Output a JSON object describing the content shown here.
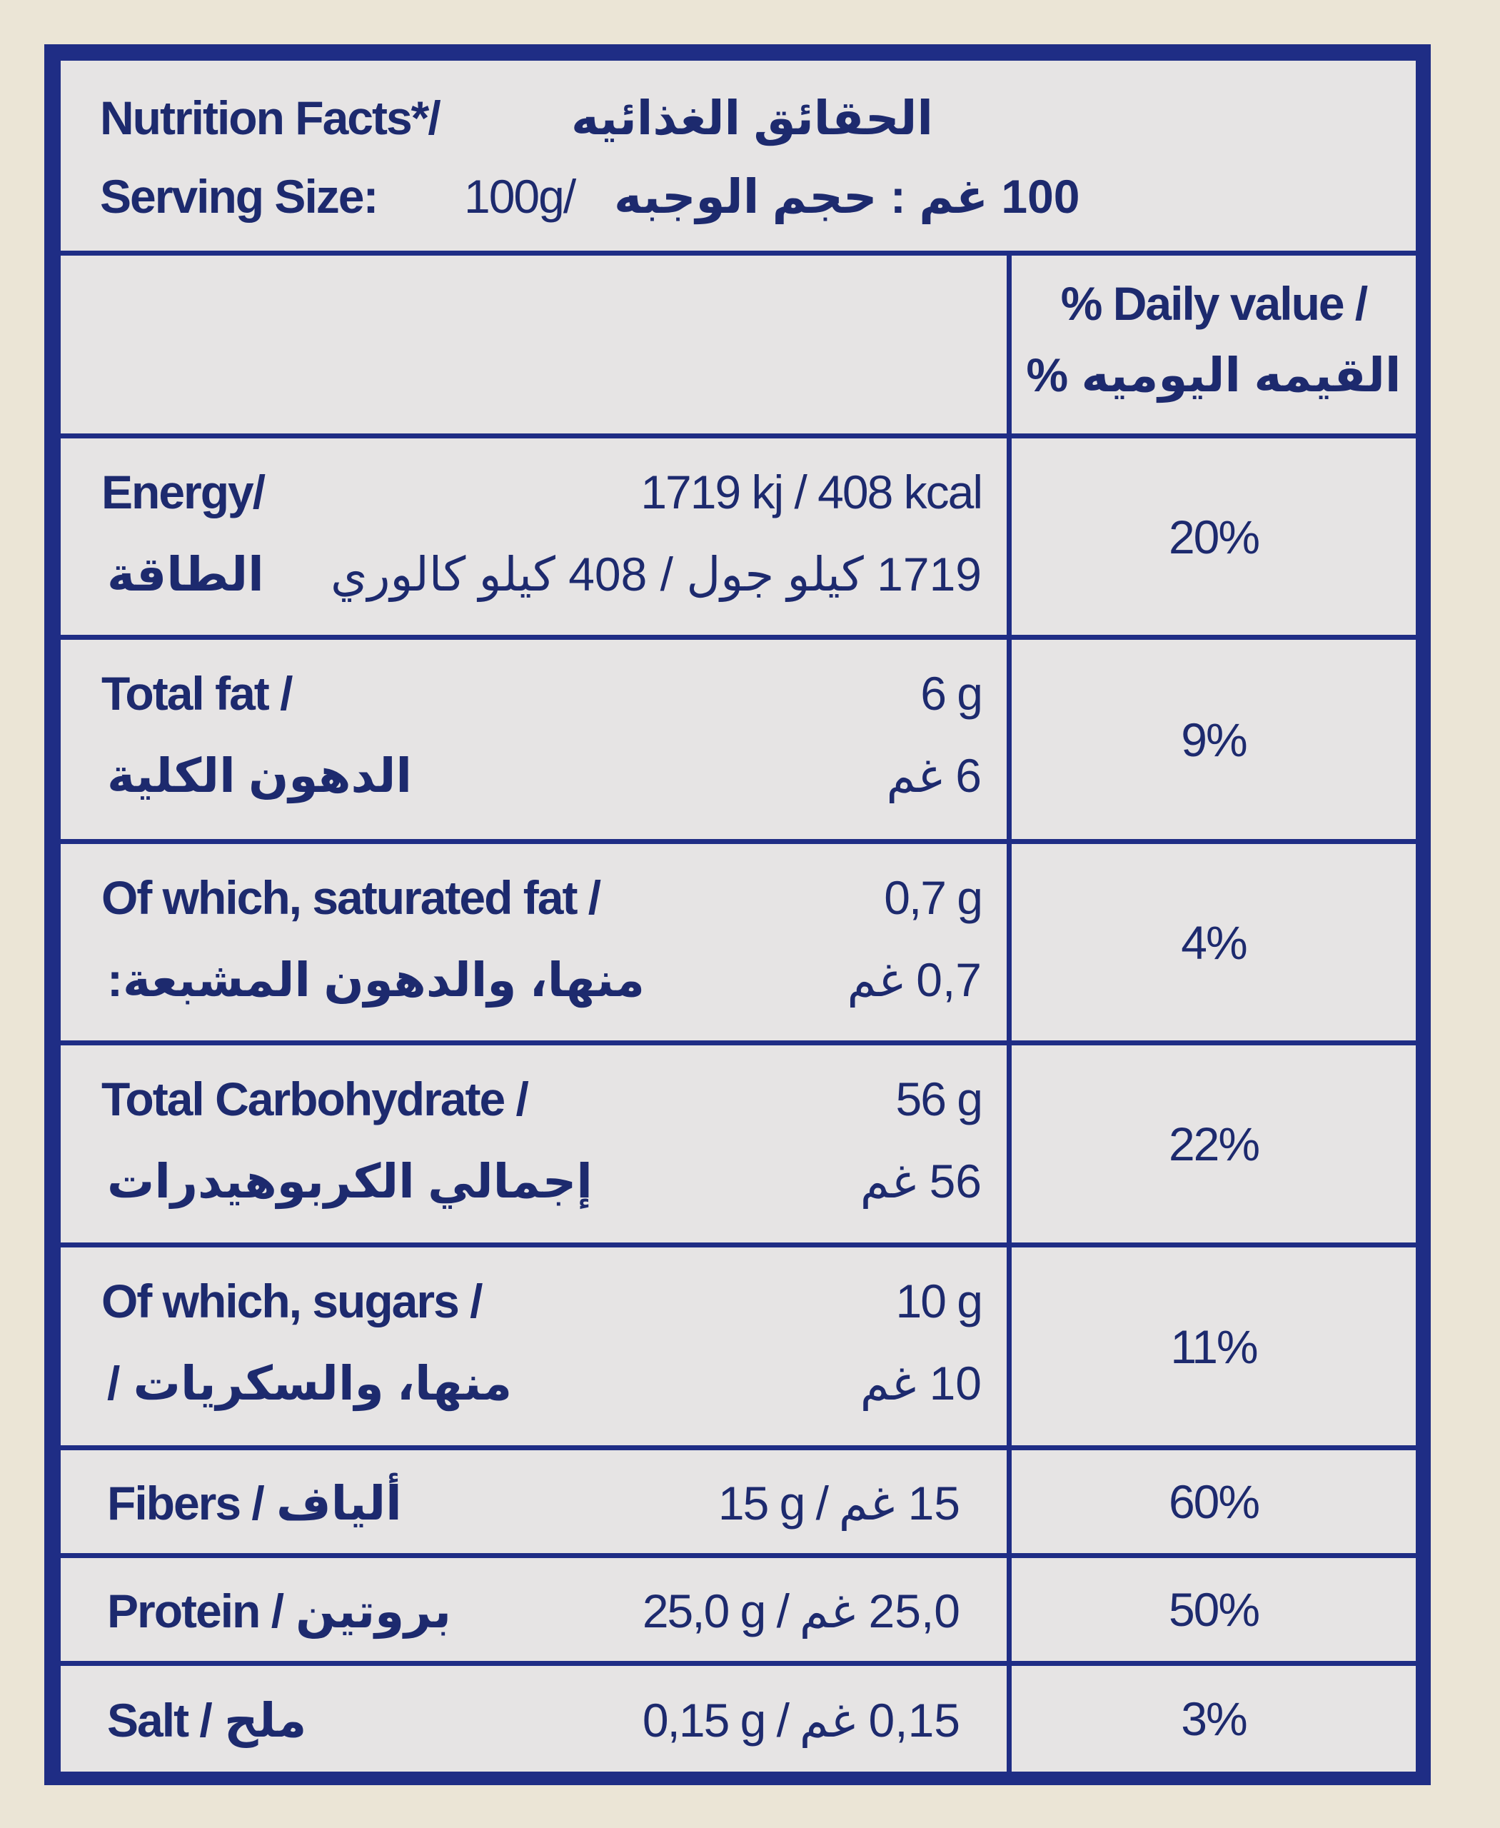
{
  "header": {
    "title_en": "Nutrition Facts*/",
    "title_ar": "الحقائق الغذائيه",
    "serving_label": "Serving Size:",
    "serving_value_en": "100g/",
    "serving_value_ar": "100 غم : حجم الوجبه"
  },
  "table": {
    "daily_header_en": "% Daily value /",
    "daily_header_ar": "القيمه اليوميه %",
    "rows": [
      {
        "name_en": "Energy/",
        "value_en": "1719 kj / 408 kcal",
        "name_ar": "الطاقة",
        "value_ar": "1719 كيلو جول / 408 كيلو كالوري",
        "daily": "20%"
      },
      {
        "name_en": "Total fat /",
        "value_en": "6 g",
        "name_ar": "الدهون الكلية",
        "value_ar": "6 غم",
        "daily": "9%"
      },
      {
        "name_en": "Of which, saturated fat /",
        "value_en": "0,7 g",
        "name_ar": "منها، والدهون المشبعة:",
        "value_ar": "0,7 غم",
        "daily": "4%"
      },
      {
        "name_en": "Total Carbohydrate /",
        "value_en": "56 g",
        "name_ar": "إجمالي الكربوهيدرات",
        "value_ar": "56 غم",
        "daily": "22%"
      },
      {
        "name_en": "Of which, sugars /",
        "value_en": "10 g",
        "name_ar": "منها، والسكريات /",
        "value_ar": "10 غم",
        "daily": "11%"
      },
      {
        "name_en": "Fibers /",
        "name_ar": "ألياف",
        "value_en": "15 g /",
        "value_ar": "15 غم",
        "daily": "60%"
      },
      {
        "name_en": "Protein /",
        "name_ar": "بروتين",
        "value_en": "25,0 g /",
        "value_ar": "25,0 غم",
        "daily": "50%"
      },
      {
        "name_en": "Salt /",
        "name_ar": "ملح",
        "value_en": "0,15 g /",
        "value_ar": "0,15 غم",
        "daily": "3%"
      }
    ]
  }
}
